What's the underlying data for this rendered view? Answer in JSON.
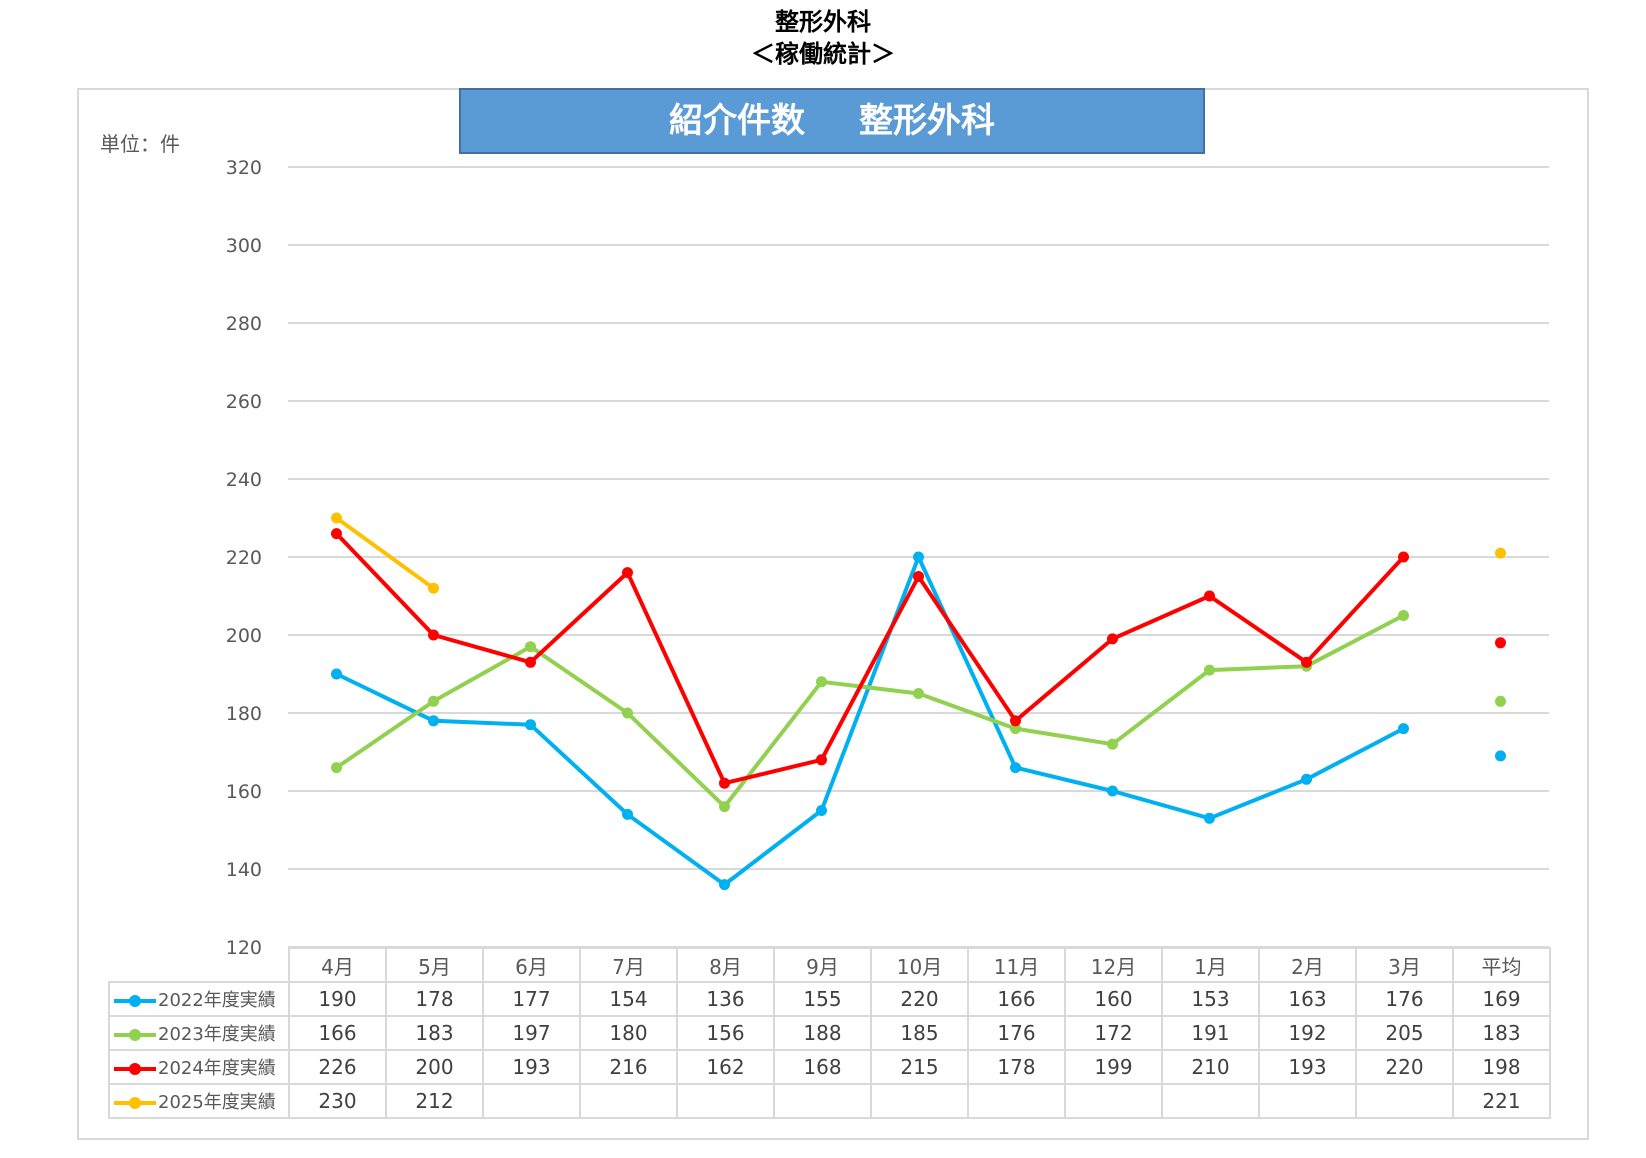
{
  "header": {
    "title_line1": "整形外科",
    "title_line2": "＜稼働統計＞"
  },
  "banner": {
    "part1": "紹介件数",
    "part2": "整形外科"
  },
  "unit_label": "単位：件",
  "chart_data": {
    "type": "line",
    "title": "紹介件数　整形外科",
    "ylabel": "単位：件",
    "ylim": [
      120,
      320
    ],
    "yticks": [
      120,
      140,
      160,
      180,
      200,
      220,
      240,
      260,
      280,
      300,
      320
    ],
    "grid": true,
    "categories": [
      "4月",
      "5月",
      "6月",
      "7月",
      "8月",
      "9月",
      "10月",
      "11月",
      "12月",
      "1月",
      "2月",
      "3月"
    ],
    "average_label": "平均",
    "series": [
      {
        "name": "2022年度実績",
        "color": "#00b0f0",
        "values": [
          190,
          178,
          177,
          154,
          136,
          155,
          220,
          166,
          160,
          153,
          163,
          176
        ],
        "average": 169
      },
      {
        "name": "2023年度実績",
        "color": "#92d050",
        "values": [
          166,
          183,
          197,
          180,
          156,
          188,
          185,
          176,
          172,
          191,
          192,
          205
        ],
        "average": 183
      },
      {
        "name": "2024年度実績",
        "color": "#ff0000",
        "values": [
          226,
          200,
          193,
          216,
          162,
          168,
          215,
          178,
          199,
          210,
          193,
          220
        ],
        "average": 198
      },
      {
        "name": "2025年度実績",
        "color": "#ffc000",
        "values": [
          230,
          212,
          null,
          null,
          null,
          null,
          null,
          null,
          null,
          null,
          null,
          null
        ],
        "average": 221
      }
    ]
  }
}
